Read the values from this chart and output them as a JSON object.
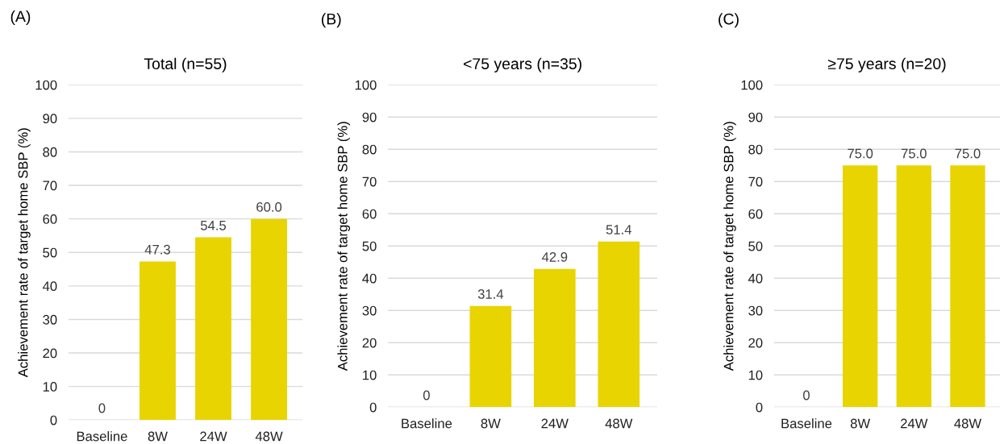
{
  "chart_data": [
    {
      "type": "bar",
      "title": "Total (n=55)",
      "ylabel": "Achievement rate of target home SBP (%)",
      "annotations": [
        "(A)"
      ],
      "categories": [
        "Baseline",
        "8W",
        "24W",
        "48W"
      ],
      "values": [
        0,
        47.3,
        54.5,
        60.0
      ],
      "value_labels": [
        "0",
        "47.3",
        "54.5",
        "60.0"
      ],
      "color": "#e8d400",
      "ylim": [
        0,
        100
      ],
      "yticks": [
        0,
        10,
        20,
        30,
        40,
        50,
        60,
        70,
        80,
        90,
        100
      ],
      "grid": "y"
    },
    {
      "type": "bar",
      "title": "<75 years (n=35)",
      "ylabel": "Achievement rate of target home SBP (%)",
      "annotations": [
        "(B)"
      ],
      "categories": [
        "Baseline",
        "8W",
        "24W",
        "48W"
      ],
      "values": [
        0,
        31.4,
        42.9,
        51.4
      ],
      "value_labels": [
        "0",
        "31.4",
        "42.9",
        "51.4"
      ],
      "color": "#e8d400",
      "ylim": [
        0,
        100
      ],
      "yticks": [
        0,
        10,
        20,
        30,
        40,
        50,
        60,
        70,
        80,
        90,
        100
      ],
      "grid": "y"
    },
    {
      "type": "bar",
      "title": "≥75 years (n=20)",
      "ylabel": "Achievement rate of target home SBP (%)",
      "annotations": [
        "(C)"
      ],
      "categories": [
        "Baseline",
        "8W",
        "24W",
        "48W"
      ],
      "values": [
        0,
        75.0,
        75.0,
        75.0
      ],
      "value_labels": [
        "0",
        "75.0",
        "75.0",
        "75.0"
      ],
      "color": "#e8d400",
      "ylim": [
        0,
        100
      ],
      "yticks": [
        0,
        10,
        20,
        30,
        40,
        50,
        60,
        70,
        80,
        90,
        100
      ],
      "grid": "y"
    }
  ]
}
